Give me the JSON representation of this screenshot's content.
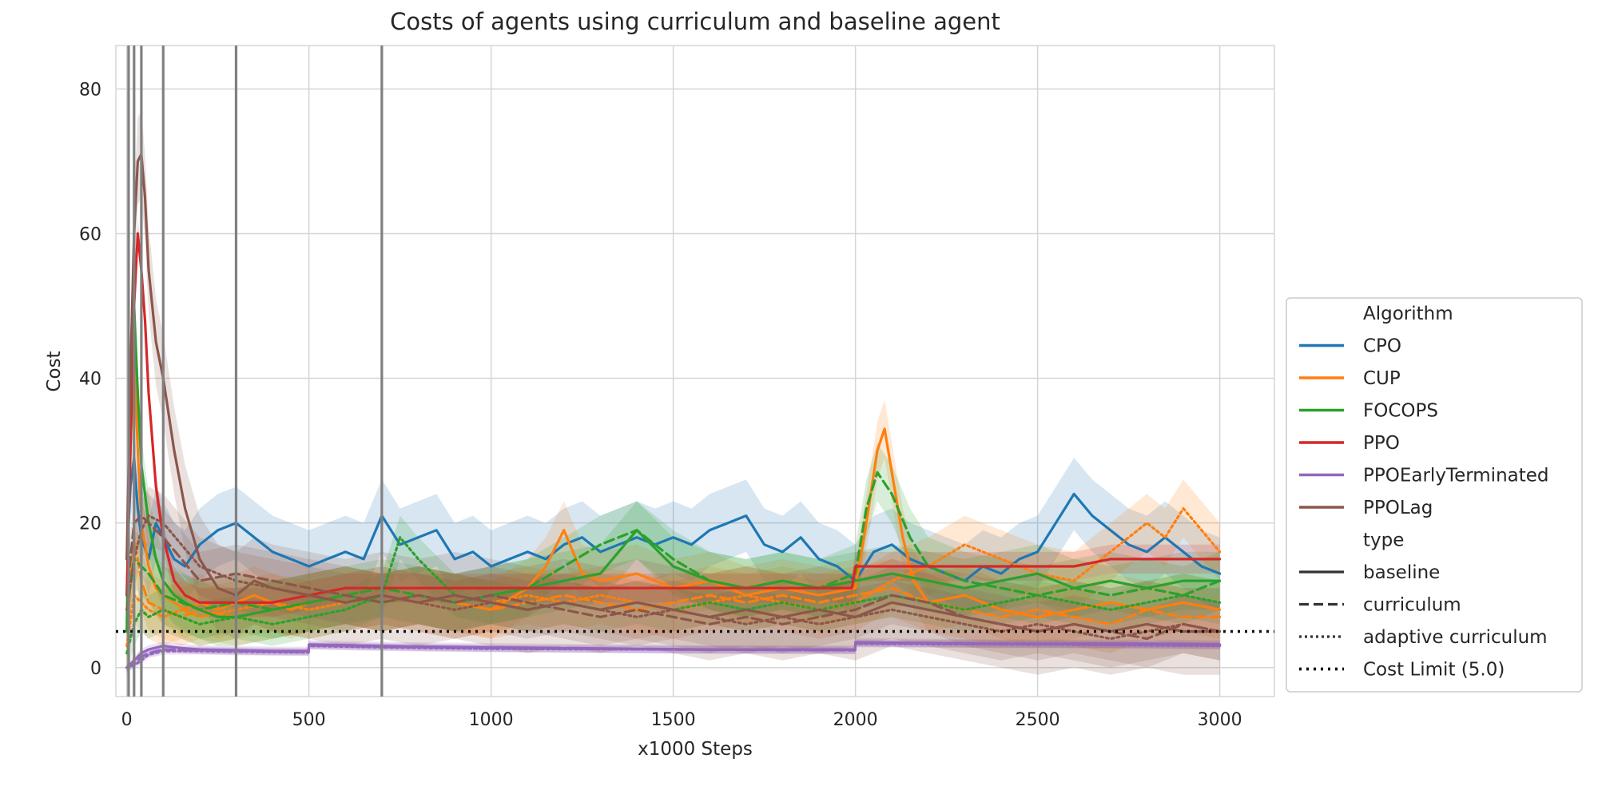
{
  "chart_data": {
    "type": "line",
    "title": "Costs of agents using curriculum and baseline agent",
    "xlabel": "x1000 Steps",
    "ylabel": "Cost",
    "xlim": [
      -30,
      3150
    ],
    "ylim": [
      -4,
      86
    ],
    "xticks": [
      0,
      500,
      1000,
      1500,
      2000,
      2500,
      3000
    ],
    "yticks": [
      0,
      20,
      40,
      60,
      80
    ],
    "grid": true,
    "legend_position": "right, outside plot",
    "cost_limit": {
      "value": 5.0,
      "label": "Cost Limit (5.0)"
    },
    "vertical_markers": [
      5,
      20,
      40,
      100,
      300,
      700
    ],
    "legend": {
      "algorithm_title": "Algorithm",
      "type_title": "type",
      "algorithms": [
        {
          "name": "CPO",
          "color": "#1f77b4"
        },
        {
          "name": "CUP",
          "color": "#ff7f0e"
        },
        {
          "name": "FOCOPS",
          "color": "#2ca02c"
        },
        {
          "name": "PPO",
          "color": "#d62728"
        },
        {
          "name": "PPOEarlyTerminated",
          "color": "#9467bd"
        },
        {
          "name": "PPOLag",
          "color": "#8c564b"
        }
      ],
      "types": [
        {
          "name": "baseline",
          "dash": "solid"
        },
        {
          "name": "curriculum",
          "dash": "dashed"
        },
        {
          "name": "adaptive curriculum",
          "dash": "dotted"
        },
        {
          "name": "Cost Limit (5.0)",
          "dash": "dotted-bold"
        }
      ]
    },
    "series": [
      {
        "algorithm": "CPO",
        "type": "baseline",
        "color": "#1f77b4",
        "band": 5,
        "x": [
          0,
          10,
          20,
          30,
          40,
          60,
          80,
          100,
          130,
          160,
          200,
          250,
          300,
          350,
          400,
          450,
          500,
          550,
          600,
          650,
          700,
          750,
          800,
          850,
          900,
          950,
          1000,
          1050,
          1100,
          1150,
          1200,
          1250,
          1300,
          1350,
          1400,
          1450,
          1500,
          1550,
          1600,
          1650,
          1700,
          1750,
          1800,
          1850,
          1900,
          1950,
          2000,
          2050,
          2100,
          2150,
          2200,
          2250,
          2300,
          2350,
          2400,
          2450,
          2500,
          2550,
          2600,
          2650,
          2700,
          2750,
          2800,
          2850,
          2900,
          2950,
          3000
        ],
        "y": [
          15,
          25,
          29,
          22,
          18,
          15,
          20,
          18,
          15,
          14,
          17,
          19,
          20,
          18,
          16,
          15,
          14,
          15,
          16,
          15,
          21,
          17,
          18,
          19,
          15,
          16,
          14,
          15,
          16,
          15,
          17,
          18,
          16,
          17,
          18,
          17,
          18,
          17,
          19,
          20,
          21,
          17,
          16,
          18,
          15,
          14,
          12,
          16,
          17,
          15,
          14,
          13,
          12,
          14,
          13,
          15,
          16,
          20,
          24,
          21,
          19,
          17,
          16,
          18,
          16,
          14,
          13
        ]
      },
      {
        "algorithm": "CUP",
        "type": "baseline",
        "color": "#ff7f0e",
        "band": 4,
        "x": [
          0,
          10,
          20,
          30,
          40,
          60,
          80,
          100,
          130,
          160,
          200,
          250,
          300,
          350,
          400,
          450,
          500,
          600,
          700,
          800,
          900,
          1000,
          1100,
          1150,
          1200,
          1250,
          1300,
          1400,
          1500,
          1600,
          1700,
          1800,
          1900,
          2000,
          2030,
          2060,
          2080,
          2100,
          2130,
          2160,
          2200,
          2300,
          2400,
          2500,
          2600,
          2700,
          2800,
          2900,
          3000
        ],
        "y": [
          10,
          30,
          44,
          30,
          20,
          14,
          11,
          10,
          9,
          8,
          9,
          8,
          9,
          10,
          9,
          8,
          9,
          10,
          9,
          10,
          9,
          8,
          11,
          14,
          19,
          13,
          12,
          13,
          11,
          12,
          10,
          11,
          10,
          11,
          20,
          30,
          33,
          27,
          18,
          12,
          9,
          10,
          8,
          7,
          8,
          9,
          8,
          9,
          8
        ]
      },
      {
        "algorithm": "CUP",
        "type": "curriculum",
        "color": "#ff7f0e",
        "band": 4,
        "x": [
          0,
          20,
          40,
          60,
          100,
          150,
          200,
          300,
          400,
          500,
          600,
          700,
          800,
          900,
          1000,
          1100,
          1200,
          1300,
          1400,
          1500,
          1600,
          1700,
          1800,
          1900,
          2000,
          2100,
          2200,
          2300,
          2400,
          2500,
          2600,
          2700,
          2800,
          2900,
          3000
        ],
        "y": [
          5,
          18,
          12,
          9,
          8,
          7,
          8,
          7,
          8,
          9,
          10,
          9,
          10,
          9,
          8,
          9,
          10,
          9,
          8,
          9,
          10,
          9,
          10,
          9,
          10,
          11,
          9,
          8,
          7,
          8,
          7,
          6,
          8,
          7,
          7
        ]
      },
      {
        "algorithm": "CUP",
        "type": "adaptive curriculum",
        "color": "#ff7f0e",
        "band": 4,
        "x": [
          0,
          20,
          40,
          60,
          100,
          150,
          200,
          300,
          400,
          500,
          600,
          700,
          800,
          900,
          1000,
          1100,
          1200,
          1300,
          1400,
          1500,
          1600,
          1700,
          1800,
          1900,
          2000,
          2100,
          2200,
          2300,
          2400,
          2500,
          2600,
          2700,
          2800,
          2850,
          2900,
          2950,
          3000
        ],
        "y": [
          3,
          10,
          9,
          8,
          7,
          8,
          7,
          8,
          9,
          8,
          9,
          10,
          9,
          8,
          9,
          10,
          9,
          10,
          9,
          8,
          9,
          10,
          9,
          8,
          9,
          12,
          14,
          17,
          15,
          13,
          12,
          16,
          20,
          18,
          22,
          19,
          16
        ]
      },
      {
        "algorithm": "FOCOPS",
        "type": "baseline",
        "color": "#2ca02c",
        "band": 4,
        "x": [
          0,
          10,
          20,
          30,
          40,
          60,
          80,
          100,
          130,
          160,
          200,
          250,
          300,
          400,
          500,
          600,
          700,
          800,
          900,
          1000,
          1100,
          1200,
          1300,
          1400,
          1500,
          1600,
          1700,
          1800,
          1900,
          2000,
          2100,
          2200,
          2300,
          2400,
          2500,
          2600,
          2700,
          2800,
          2900,
          3000
        ],
        "y": [
          5,
          40,
          50,
          38,
          28,
          20,
          15,
          12,
          10,
          9,
          8,
          7,
          7,
          8,
          9,
          10,
          9,
          10,
          9,
          10,
          11,
          12,
          13,
          19,
          14,
          12,
          11,
          12,
          11,
          12,
          13,
          12,
          11,
          12,
          13,
          11,
          12,
          11,
          12,
          12
        ]
      },
      {
        "algorithm": "FOCOPS",
        "type": "curriculum",
        "color": "#2ca02c",
        "band": 4,
        "x": [
          0,
          20,
          40,
          60,
          100,
          150,
          200,
          300,
          400,
          500,
          600,
          700,
          800,
          900,
          1000,
          1100,
          1200,
          1300,
          1400,
          1500,
          1600,
          1700,
          1800,
          1900,
          2000,
          2030,
          2060,
          2100,
          2150,
          2200,
          2300,
          2400,
          2500,
          2600,
          2700,
          2800,
          2900,
          3000
        ],
        "y": [
          8,
          15,
          14,
          13,
          10,
          9,
          8,
          9,
          8,
          9,
          10,
          11,
          10,
          9,
          10,
          11,
          14,
          17,
          19,
          15,
          12,
          11,
          12,
          11,
          13,
          22,
          27,
          24,
          18,
          14,
          12,
          11,
          10,
          11,
          10,
          11,
          10,
          12
        ]
      },
      {
        "algorithm": "FOCOPS",
        "type": "adaptive curriculum",
        "color": "#2ca02c",
        "band": 3,
        "x": [
          0,
          20,
          40,
          60,
          100,
          150,
          200,
          300,
          400,
          500,
          600,
          700,
          750,
          800,
          900,
          1000,
          1100,
          1200,
          1300,
          1400,
          1500,
          1600,
          1700,
          1800,
          1900,
          2000,
          2100,
          2200,
          2300,
          2400,
          2500,
          2600,
          2700,
          2800,
          2900,
          3000
        ],
        "y": [
          2,
          6,
          8,
          7,
          8,
          7,
          6,
          7,
          6,
          7,
          8,
          10,
          18,
          15,
          10,
          9,
          8,
          9,
          8,
          9,
          8,
          9,
          8,
          9,
          8,
          9,
          10,
          9,
          8,
          9,
          10,
          9,
          8,
          9,
          10,
          9
        ]
      },
      {
        "algorithm": "PPO",
        "type": "baseline",
        "color": "#d62728",
        "band": 2,
        "x": [
          0,
          10,
          20,
          30,
          40,
          50,
          60,
          80,
          100,
          130,
          160,
          200,
          250,
          300,
          400,
          500,
          600,
          700,
          800,
          900,
          1000,
          1100,
          1200,
          1300,
          1400,
          1500,
          1600,
          1700,
          1800,
          1900,
          1990,
          2000,
          2100,
          2200,
          2300,
          2400,
          2500,
          2600,
          2700,
          2800,
          2900,
          3000
        ],
        "y": [
          10,
          30,
          50,
          60,
          55,
          48,
          38,
          25,
          18,
          12,
          10,
          9,
          9,
          9,
          9,
          10,
          11,
          11,
          11,
          11,
          11,
          11,
          11,
          11,
          11,
          11,
          11,
          11,
          11,
          11,
          11,
          14,
          14,
          14,
          14,
          14,
          14,
          14,
          15,
          15,
          15,
          15
        ]
      },
      {
        "algorithm": "PPOEarlyTerminated",
        "type": "baseline",
        "color": "#9467bd",
        "band": 0.6,
        "x": [
          0,
          20,
          40,
          60,
          100,
          150,
          200,
          300,
          400,
          499,
          500,
          600,
          700,
          800,
          1000,
          1200,
          1400,
          1600,
          1800,
          1999,
          2000,
          2200,
          2400,
          2600,
          2800,
          3000
        ],
        "y": [
          0,
          1,
          2,
          2.5,
          3,
          2.7,
          2.5,
          2.4,
          2.3,
          2.3,
          3.2,
          3.1,
          3,
          2.9,
          2.8,
          2.7,
          2.6,
          2.5,
          2.5,
          2.5,
          3.5,
          3.4,
          3.3,
          3.3,
          3.3,
          3.2
        ]
      },
      {
        "algorithm": "PPOEarlyTerminated",
        "type": "curriculum",
        "color": "#9467bd",
        "band": 0.5,
        "x": [
          0,
          20,
          40,
          60,
          100,
          200,
          300,
          499,
          500,
          700,
          1000,
          1500,
          1999,
          2000,
          2500,
          3000
        ],
        "y": [
          0,
          0.5,
          1.5,
          2,
          2.5,
          2.4,
          2.3,
          2.2,
          3.1,
          2.9,
          2.7,
          2.5,
          2.4,
          3.4,
          3.3,
          3.1
        ]
      },
      {
        "algorithm": "PPOEarlyTerminated",
        "type": "adaptive curriculum",
        "color": "#9467bd",
        "band": 0.5,
        "x": [
          0,
          20,
          40,
          60,
          100,
          200,
          300,
          499,
          500,
          700,
          1000,
          1500,
          1999,
          2000,
          2500,
          3000
        ],
        "y": [
          0,
          0.3,
          1,
          1.8,
          2.3,
          2.3,
          2.2,
          2.1,
          3,
          2.8,
          2.6,
          2.5,
          2.4,
          3.3,
          3.2,
          3
        ]
      },
      {
        "algorithm": "PPOLag",
        "type": "baseline",
        "color": "#8c564b",
        "band": 6,
        "x": [
          0,
          10,
          20,
          30,
          40,
          50,
          60,
          80,
          100,
          130,
          160,
          200,
          250,
          300,
          350,
          400,
          500,
          600,
          700,
          800,
          900,
          1000,
          1100,
          1200,
          1300,
          1400,
          1500,
          1600,
          1700,
          1800,
          1900,
          2000,
          2100,
          2200,
          2300,
          2400,
          2500,
          2600,
          2700,
          2800,
          2900,
          3000
        ],
        "y": [
          15,
          40,
          60,
          70,
          71,
          65,
          55,
          45,
          40,
          30,
          22,
          15,
          11,
          10,
          12,
          11,
          10,
          9,
          10,
          9,
          10,
          9,
          8,
          9,
          8,
          9,
          8,
          7,
          8,
          7,
          8,
          7,
          9,
          8,
          7,
          6,
          5,
          6,
          5,
          6,
          5,
          5
        ]
      },
      {
        "algorithm": "PPOLag",
        "type": "curriculum",
        "color": "#8c564b",
        "band": 4,
        "x": [
          0,
          20,
          40,
          60,
          100,
          150,
          200,
          300,
          400,
          500,
          600,
          700,
          800,
          900,
          1000,
          1100,
          1200,
          1300,
          1400,
          1500,
          1600,
          1700,
          1800,
          1900,
          2000,
          2100,
          2200,
          2300,
          2400,
          2500,
          2600,
          2700,
          2800,
          2900,
          3000
        ],
        "y": [
          10,
          20,
          21,
          20,
          18,
          15,
          12,
          13,
          12,
          11,
          10,
          9,
          10,
          9,
          10,
          9,
          8,
          7,
          8,
          7,
          6,
          7,
          6,
          7,
          8,
          10,
          9,
          7,
          6,
          5,
          6,
          5,
          4,
          6,
          5
        ]
      },
      {
        "algorithm": "PPOLag",
        "type": "adaptive curriculum",
        "color": "#8c564b",
        "band": 4,
        "x": [
          0,
          20,
          40,
          60,
          100,
          150,
          200,
          300,
          400,
          500,
          600,
          700,
          800,
          900,
          1000,
          1100,
          1200,
          1300,
          1400,
          1500,
          1600,
          1700,
          1800,
          1900,
          2000,
          2100,
          2200,
          2300,
          2400,
          2500,
          2600,
          2700,
          2800,
          2900,
          3000
        ],
        "y": [
          8,
          15,
          19,
          21,
          20,
          17,
          14,
          12,
          11,
          10,
          9,
          10,
          9,
          8,
          9,
          8,
          9,
          8,
          7,
          8,
          7,
          6,
          7,
          6,
          7,
          8,
          7,
          6,
          5,
          6,
          5,
          4,
          5,
          6,
          5
        ]
      }
    ]
  }
}
